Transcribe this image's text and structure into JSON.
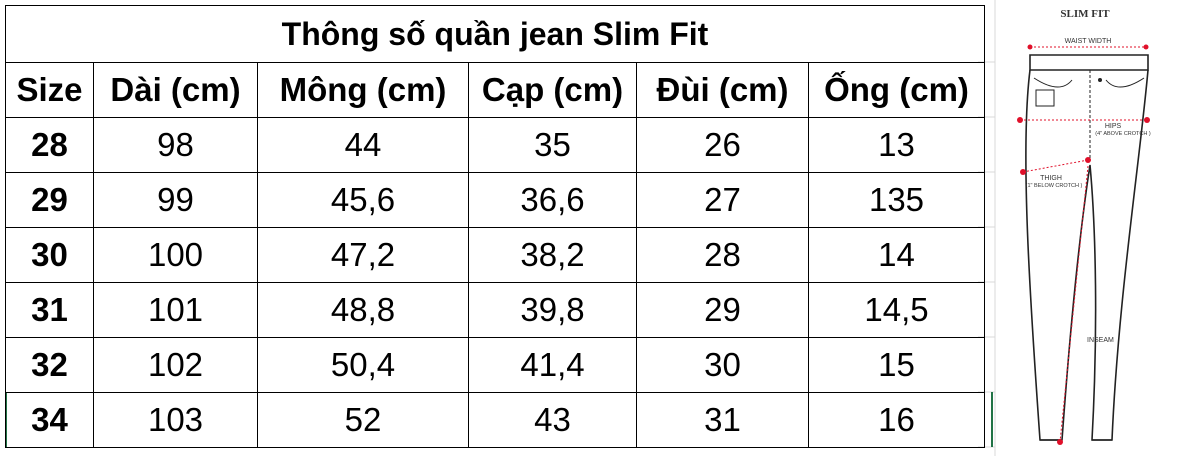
{
  "table": {
    "title": "Thông số quần jean Slim Fit",
    "header": [
      "Size",
      "Dài (cm)",
      "Mông (cm)",
      "Cạp (cm)",
      "Đùi (cm)",
      "Ống (cm)"
    ],
    "rows": [
      [
        "28",
        "98",
        "44",
        "35",
        "26",
        "13"
      ],
      [
        "29",
        "99",
        "45,6",
        "36,6",
        "27",
        "135"
      ],
      [
        "30",
        "100",
        "47,2",
        "38,2",
        "28",
        "14"
      ],
      [
        "31",
        "101",
        "48,8",
        "39,8",
        "29",
        "14,5"
      ],
      [
        "32",
        "102",
        "50,4",
        "41,4",
        "30",
        "15"
      ],
      [
        "34",
        "103",
        "52",
        "43",
        "31",
        "16"
      ]
    ]
  },
  "diagram": {
    "title": "SLIM FIT",
    "labels": {
      "waist": "WAIST WIDTH",
      "hips": "HIPS",
      "hips_note": "(4\" ABOVE CROTCH )",
      "thigh": "THIGH",
      "thigh_note": "(1\" BELOW CROTCH )",
      "inseam": "INSEAM"
    }
  }
}
